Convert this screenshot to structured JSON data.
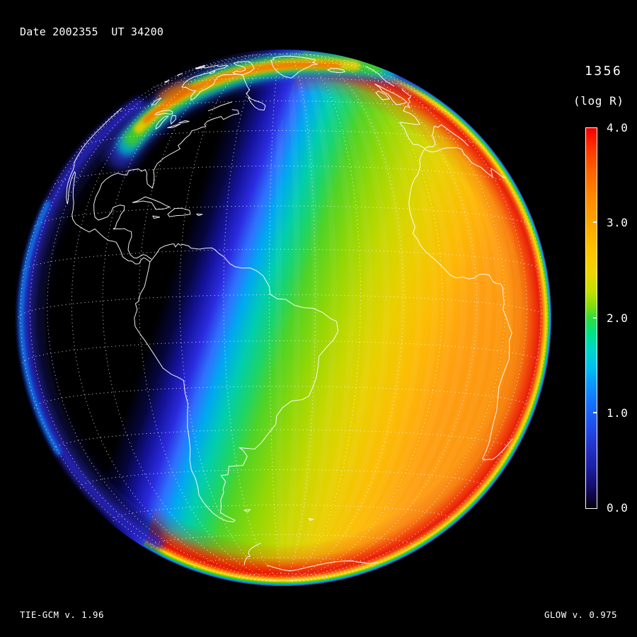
{
  "header": {
    "date_label": "Date 2002355  UT 34200"
  },
  "colorbar": {
    "title": "1356",
    "units": "(log R)",
    "ticks": [
      "4.0",
      "3.0",
      "2.0",
      "1.0",
      "0.0"
    ],
    "min": 0.0,
    "max": 4.0,
    "gradient_stops": [
      [
        "#f20000",
        "0%"
      ],
      [
        "#ff3000",
        "5%"
      ],
      [
        "#ff6000",
        "11%"
      ],
      [
        "#ff8800",
        "18%"
      ],
      [
        "#ffa400",
        "25%"
      ],
      [
        "#fec200",
        "32%"
      ],
      [
        "#eed500",
        "38%"
      ],
      [
        "#c3de00",
        "43%"
      ],
      [
        "#7edd10",
        "47%"
      ],
      [
        "#2edd3e",
        "50%"
      ],
      [
        "#00e287",
        "54%"
      ],
      [
        "#00d8c6",
        "58%"
      ],
      [
        "#00c0f0",
        "63%"
      ],
      [
        "#0a99ff",
        "67%"
      ],
      [
        "#1573ff",
        "72%"
      ],
      [
        "#1e51ec",
        "78%"
      ],
      [
        "#2337cf",
        "83%"
      ],
      [
        "#1d1fa6",
        "89%"
      ],
      [
        "#120c62",
        "95%"
      ],
      [
        "#05021c",
        "99%"
      ],
      [
        "#000000",
        "100%"
      ]
    ]
  },
  "footer": {
    "left": "TIE-GCM v. 1.96",
    "right": "GLOW v. 0.975"
  },
  "chart_data": {
    "type": "heatmap",
    "title": "Date 2002355  UT 34200",
    "date_yyyyddd": "2002355",
    "ut_seconds": "34200",
    "quantity": "1356",
    "units": "(log R)",
    "colorbar_range": [
      0.0,
      4.0
    ],
    "colorbar_ticks": [
      4.0,
      3.0,
      2.0,
      1.0,
      0.0
    ],
    "colormap_top_to_bottom": [
      "red",
      "orange",
      "yellow",
      "green",
      "cyan",
      "blue",
      "dark blue",
      "black"
    ],
    "scene": {
      "projection": "orthographic globe centered near 5S, 47W (Americas / Atlantic)",
      "night_side": {
        "region": "left of terminator: North & Central America, western South America",
        "log_R": 0.0
      },
      "terminator_band": {
        "description": "diagonal gradient band black-blue-cyan-green-yellow from upper middle to lower left",
        "log_R_range": [
          0.0,
          2.5
        ]
      },
      "day_side": {
        "region": "right of terminator: Brazil, Atlantic, Africa, Europe",
        "log_R_range": [
          3.0,
          3.7
        ]
      },
      "sunlit_limb_ring": {
        "description": "bright red ring along sunlit limb with yellow-green-blue outer fringe",
        "log_R": 4.0
      },
      "auroral_oval": {
        "description": "orange-yellow arc with green/blue fringe across northern high latitudes",
        "log_R_range": [
          3.0,
          3.7
        ]
      },
      "night_limb_glow": {
        "description": "faint blue glow band along night-side (left) limb",
        "log_R_range": [
          0.5,
          1.5
        ]
      },
      "graticule": "white dotted 10-degree grid",
      "coastlines": "white outlines (Americas, Greenland, Europe, Africa, Antarctica)"
    },
    "annotations": [
      "TIE-GCM v. 1.96",
      "GLOW v. 0.975"
    ]
  }
}
